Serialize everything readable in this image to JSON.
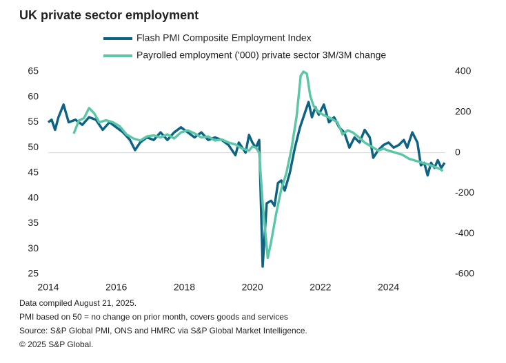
{
  "chart_data": {
    "type": "line",
    "title": "UK private sector employment",
    "notes": [
      "Data compiled August 21, 2025.",
      "PMI based on 50 = no change on prior month, covers goods and services",
      "Source: S&P Global PMI, ONS and HMRC via S&P Global Market Intelligence.",
      "© 2025 S&P Global."
    ],
    "xlim": [
      2014,
      2025.67
    ],
    "xticks": [
      2014,
      2016,
      2018,
      2020,
      2022,
      2024
    ],
    "ylim": [
      25,
      65
    ],
    "yticks": [
      25,
      30,
      35,
      40,
      45,
      50,
      55,
      60,
      65
    ],
    "y2lim": [
      -600,
      400
    ],
    "y2ticks": [
      -600,
      -400,
      -200,
      0,
      200,
      400
    ],
    "zero_line": true,
    "series": [
      {
        "name": "Flash PMI Composite Employment Index",
        "color": "#0e6385",
        "axis": "y",
        "x": [
          2014.0,
          2014.1,
          2014.2,
          2014.3,
          2014.45,
          2014.6,
          2014.8,
          2015.0,
          2015.2,
          2015.4,
          2015.6,
          2015.8,
          2016.0,
          2016.2,
          2016.4,
          2016.55,
          2016.7,
          2016.9,
          2017.1,
          2017.3,
          2017.5,
          2017.7,
          2017.9,
          2018.1,
          2018.3,
          2018.5,
          2018.7,
          2018.9,
          2019.1,
          2019.3,
          2019.5,
          2019.6,
          2019.8,
          2019.9,
          2020.0,
          2020.1,
          2020.2,
          2020.3,
          2020.42,
          2020.55,
          2020.65,
          2020.75,
          2020.85,
          2020.95,
          2021.1,
          2021.25,
          2021.4,
          2021.55,
          2021.65,
          2021.75,
          2021.85,
          2021.95,
          2022.1,
          2022.25,
          2022.4,
          2022.55,
          2022.7,
          2022.85,
          2023.0,
          2023.15,
          2023.3,
          2023.45,
          2023.55,
          2023.7,
          2023.85,
          2024.0,
          2024.15,
          2024.3,
          2024.45,
          2024.55,
          2024.7,
          2024.85,
          2024.95,
          2025.05,
          2025.15,
          2025.25,
          2025.35,
          2025.45,
          2025.55,
          2025.65
        ],
        "values": [
          55,
          55.5,
          53.5,
          56,
          58.5,
          55,
          55.5,
          54.5,
          56,
          55.5,
          53.5,
          55,
          54,
          53,
          51.5,
          49.5,
          51,
          52,
          51.5,
          53,
          51.5,
          53,
          54,
          53,
          52,
          53,
          51.5,
          52,
          51.5,
          50.5,
          48.5,
          51,
          49,
          52.5,
          51,
          50,
          51.5,
          26.5,
          39,
          39.5,
          38.5,
          43,
          43.5,
          41.5,
          45,
          50,
          54,
          57,
          59,
          56,
          58,
          56.5,
          58.5,
          55,
          56,
          54,
          53,
          50,
          52,
          51,
          53.5,
          52,
          48,
          49.5,
          50.5,
          51,
          50,
          50.5,
          51.5,
          50,
          53,
          51,
          46.5,
          47,
          44.5,
          47,
          46,
          47.5,
          46,
          47
        ]
      },
      {
        "name": "Payrolled employment ('000) private sector 3M/3M change",
        "color": "#5cc6a7",
        "axis": "y2",
        "x": [
          2014.75,
          2014.9,
          2015.05,
          2015.2,
          2015.35,
          2015.5,
          2015.7,
          2015.9,
          2016.1,
          2016.3,
          2016.5,
          2016.7,
          2016.9,
          2017.1,
          2017.3,
          2017.5,
          2017.7,
          2017.9,
          2018.1,
          2018.3,
          2018.5,
          2018.7,
          2018.9,
          2019.1,
          2019.3,
          2019.5,
          2019.7,
          2019.9,
          2020.0,
          2020.1,
          2020.2,
          2020.3,
          2020.45,
          2020.55,
          2020.7,
          2020.85,
          2021.0,
          2021.15,
          2021.3,
          2021.42,
          2021.5,
          2021.6,
          2021.7,
          2021.8,
          2021.95,
          2022.1,
          2022.3,
          2022.5,
          2022.65,
          2022.8,
          2022.95,
          2023.1,
          2023.3,
          2023.5,
          2023.7,
          2023.85,
          2024.0,
          2024.2,
          2024.4,
          2024.6,
          2024.8,
          2025.0,
          2025.2,
          2025.35,
          2025.5,
          2025.6
        ],
        "values": [
          94,
          158,
          170,
          220,
          195,
          150,
          160,
          150,
          130,
          90,
          70,
          60,
          80,
          85,
          75,
          90,
          70,
          100,
          110,
          95,
          75,
          80,
          60,
          65,
          50,
          40,
          20,
          10,
          30,
          25,
          0,
          -250,
          -520,
          -440,
          -300,
          -180,
          -100,
          20,
          180,
          380,
          400,
          390,
          280,
          230,
          200,
          185,
          170,
          150,
          90,
          110,
          100,
          80,
          50,
          30,
          10,
          20,
          10,
          0,
          -10,
          -30,
          -40,
          -50,
          -60,
          -70,
          -80,
          -90
        ]
      }
    ]
  }
}
